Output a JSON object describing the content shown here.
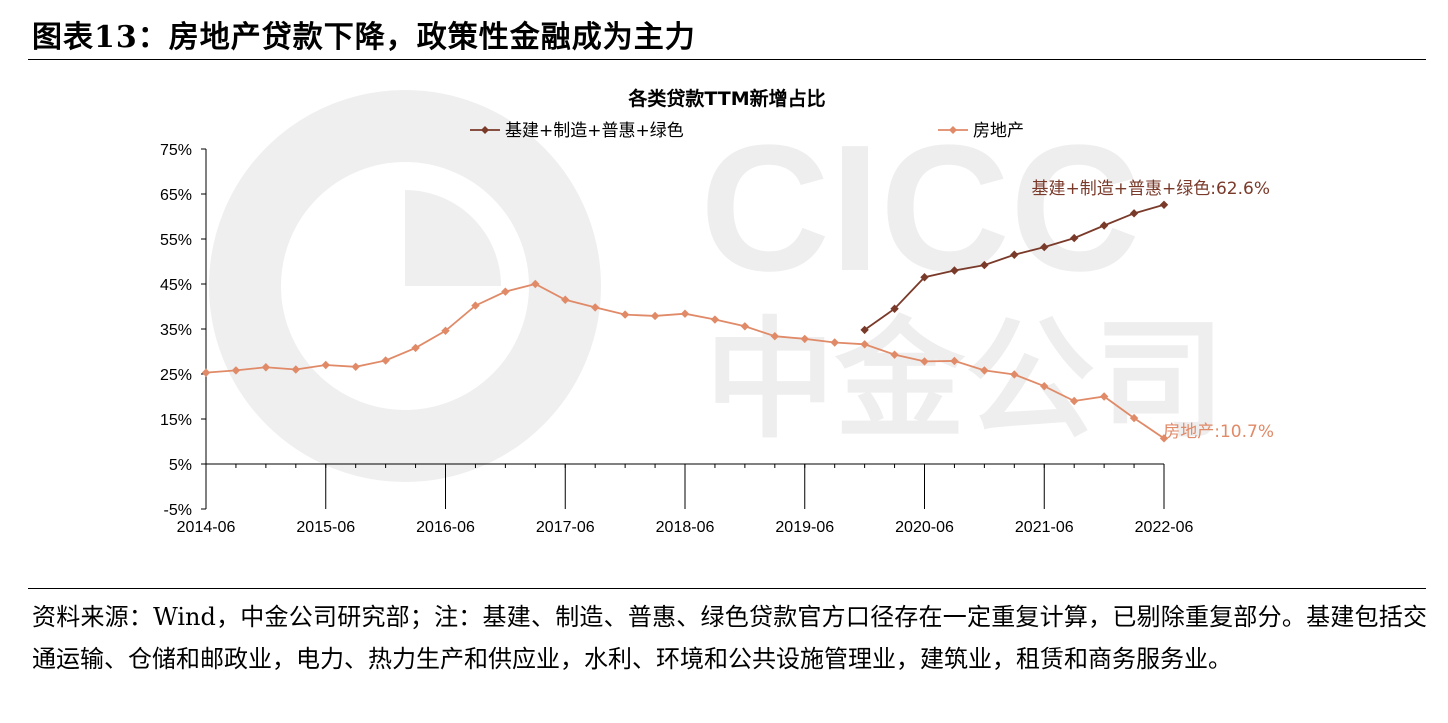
{
  "figure_title": "图表13：房地产贷款下降，政策性金融成为主力",
  "source_note": "资料来源：Wind，中金公司研究部；注：基建、制造、普惠、绿色贷款官方口径存在一定重复计算，已剔除重复部分。基建包括交通运输、仓储和邮政业，电力、热力生产和供应业，水利、环境和公共设施管理业，建筑业，租赁和商务服务业。",
  "watermark": {
    "latin": "CICC",
    "chinese": "中金公司"
  },
  "colors": {
    "series1": "#7a3a2a",
    "series2": "#e08a68",
    "axis": "#000000",
    "watermark": "#e6e6e6"
  },
  "chart_data": {
    "type": "line",
    "title": "各类贷款TTM新增占比",
    "xlabel": "",
    "ylabel": "",
    "ylim": [
      -5,
      75
    ],
    "yticks": [
      "-5%",
      "5%",
      "15%",
      "25%",
      "35%",
      "45%",
      "55%",
      "65%",
      "75%"
    ],
    "x_tick_labels": [
      "2014-06",
      "2015-06",
      "2016-06",
      "2017-06",
      "2018-06",
      "2019-06",
      "2020-06",
      "2021-06",
      "2022-06"
    ],
    "grid": false,
    "legend_position": "top",
    "x": [
      "2014-06",
      "2014-09",
      "2014-12",
      "2015-03",
      "2015-06",
      "2015-09",
      "2015-12",
      "2016-03",
      "2016-06",
      "2016-09",
      "2016-12",
      "2017-03",
      "2017-06",
      "2017-09",
      "2017-12",
      "2018-03",
      "2018-06",
      "2018-09",
      "2018-12",
      "2019-03",
      "2019-06",
      "2019-09",
      "2019-12",
      "2020-03",
      "2020-06",
      "2020-09",
      "2020-12",
      "2021-03",
      "2021-06",
      "2021-09",
      "2021-12",
      "2022-03",
      "2022-06"
    ],
    "series": [
      {
        "name": "基建+制造+普惠+绿色",
        "color": "#7a3a2a",
        "values": [
          null,
          null,
          null,
          null,
          null,
          null,
          null,
          null,
          null,
          null,
          null,
          null,
          null,
          null,
          null,
          null,
          null,
          null,
          null,
          null,
          null,
          null,
          34.8,
          39.5,
          46.5,
          48.0,
          49.2,
          51.5,
          53.2,
          55.2,
          58.0,
          60.7,
          62.6
        ],
        "end_label": "基建+制造+普惠+绿色:62.6%"
      },
      {
        "name": "房地产",
        "color": "#e08a68",
        "values": [
          25.3,
          25.8,
          26.5,
          26.0,
          27.0,
          26.6,
          28.0,
          30.8,
          34.6,
          40.2,
          43.3,
          45.0,
          41.5,
          39.8,
          38.2,
          37.9,
          38.4,
          37.1,
          35.6,
          33.4,
          32.8,
          32.0,
          31.6,
          29.3,
          27.8,
          27.9,
          25.8,
          24.9,
          22.3,
          19.0,
          20.0,
          15.2,
          10.7
        ],
        "end_label": "房地产:10.7%"
      }
    ]
  }
}
